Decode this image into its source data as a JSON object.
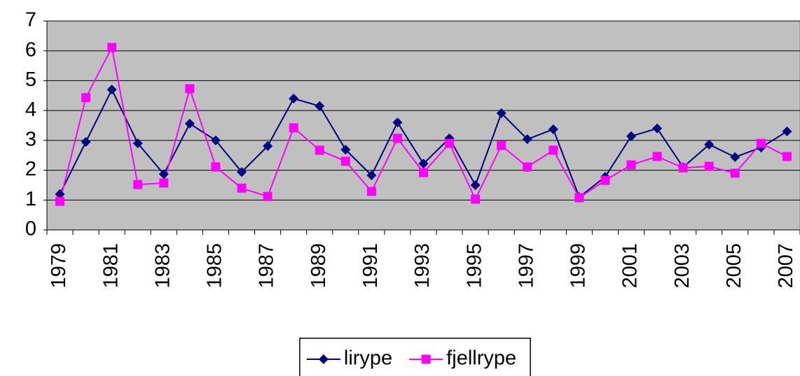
{
  "chart_data": {
    "type": "line",
    "categories": [
      "1979",
      null,
      "1981",
      null,
      "1983",
      null,
      "1985",
      null,
      "1987",
      null,
      "1989",
      null,
      "1991",
      null,
      "1993",
      null,
      "1995",
      null,
      "1997",
      null,
      "1999",
      null,
      "2001",
      null,
      "2003",
      null,
      "2005",
      null,
      "2007"
    ],
    "series": [
      {
        "name": "lirype",
        "color": "#000080",
        "marker": "diamond",
        "values": [
          1.2,
          2.95,
          4.7,
          2.9,
          1.87,
          3.56,
          3.0,
          1.94,
          2.81,
          4.4,
          4.15,
          2.69,
          1.83,
          3.6,
          2.22,
          3.07,
          1.5,
          3.91,
          3.04,
          3.37,
          1.1,
          1.78,
          3.14,
          3.4,
          2.1,
          2.86,
          2.44,
          2.76,
          3.3
        ]
      },
      {
        "name": "fjellrype",
        "color": "#ff00ff",
        "marker": "square",
        "values": [
          0.96,
          4.43,
          6.11,
          1.52,
          1.57,
          4.73,
          2.11,
          1.4,
          1.12,
          3.42,
          2.67,
          2.3,
          1.29,
          3.07,
          1.92,
          2.9,
          1.03,
          2.83,
          2.11,
          2.67,
          1.08,
          1.66,
          2.18,
          2.46,
          2.08,
          2.13,
          1.9,
          2.9,
          2.46
        ]
      }
    ],
    "ylim": [
      0,
      7
    ],
    "yticks": [
      0,
      1,
      2,
      3,
      4,
      5,
      6,
      7
    ],
    "grid": true,
    "legend": "bottom"
  }
}
